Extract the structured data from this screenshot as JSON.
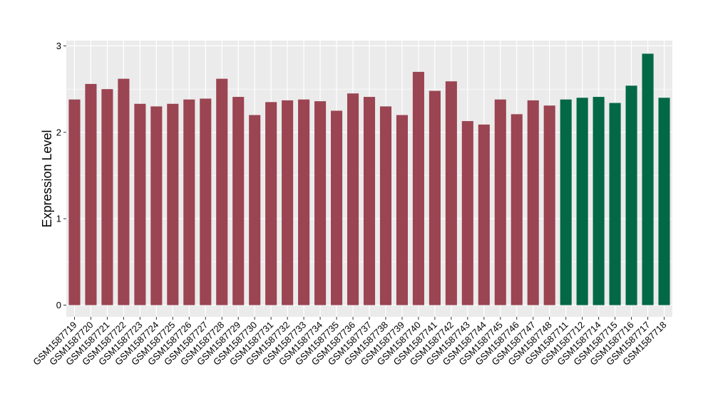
{
  "chart_data": {
    "type": "bar",
    "title": "",
    "xlabel": "",
    "ylabel": "Expression Level",
    "ylim": [
      0,
      3
    ],
    "yticks": [
      0,
      1,
      2,
      3
    ],
    "grid": true,
    "legend": "none",
    "categories": [
      "GSM1587719",
      "GSM1587720",
      "GSM1587721",
      "GSM1587722",
      "GSM1587723",
      "GSM1587724",
      "GSM1587725",
      "GSM1587726",
      "GSM1587727",
      "GSM1587728",
      "GSM1587729",
      "GSM1587730",
      "GSM1587731",
      "GSM1587732",
      "GSM1587733",
      "GSM1587734",
      "GSM1587735",
      "GSM1587736",
      "GSM1587737",
      "GSM1587738",
      "GSM1587739",
      "GSM1587740",
      "GSM1587741",
      "GSM1587742",
      "GSM1587743",
      "GSM1587744",
      "GSM1587745",
      "GSM1587746",
      "GSM1587747",
      "GSM1587748",
      "GSM1587711",
      "GSM1587712",
      "GSM1587714",
      "GSM1587715",
      "GSM1587716",
      "GSM1587717",
      "GSM1587718"
    ],
    "values": [
      2.38,
      2.56,
      2.5,
      2.62,
      2.33,
      2.3,
      2.33,
      2.38,
      2.39,
      2.62,
      2.41,
      2.2,
      2.35,
      2.37,
      2.38,
      2.36,
      2.25,
      2.45,
      2.41,
      2.3,
      2.2,
      2.7,
      2.48,
      2.59,
      2.13,
      2.09,
      2.38,
      2.21,
      2.37,
      2.31,
      2.38,
      2.4,
      2.41,
      2.34,
      2.54,
      2.91,
      2.4
    ],
    "groups": [
      "a",
      "a",
      "a",
      "a",
      "a",
      "a",
      "a",
      "a",
      "a",
      "a",
      "a",
      "a",
      "a",
      "a",
      "a",
      "a",
      "a",
      "a",
      "a",
      "a",
      "a",
      "a",
      "a",
      "a",
      "a",
      "a",
      "a",
      "a",
      "a",
      "a",
      "b",
      "b",
      "b",
      "b",
      "b",
      "b",
      "b"
    ],
    "colors": {
      "a": "#9b4452",
      "b": "#036845",
      "panel_bg": "#ebebeb",
      "grid": "#ffffff"
    }
  }
}
